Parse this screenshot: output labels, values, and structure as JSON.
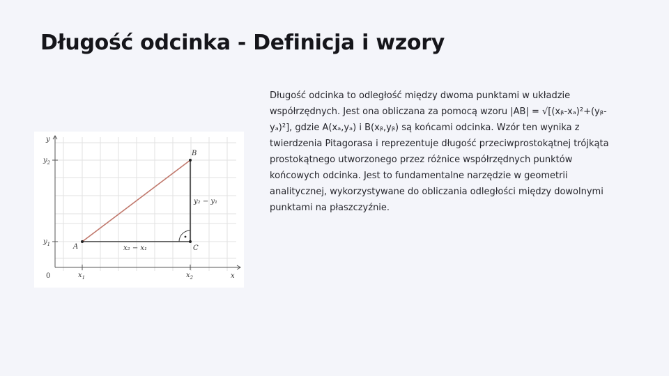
{
  "slide": {
    "title": "Długość odcinka - Definicja i wzory",
    "body": "Długość odcinka to odległość między dwoma punktami w układzie współrzędnych. Jest ona obliczana za pomocą wzoru |AB| = √[(xᵦ-xₐ)²+(yᵦ-yₐ)²], gdzie A(xₐ,yₐ) i B(xᵦ,yᵦ) są końcami odcinka. Wzór ten wynika z twierdzenia Pitagorasa i reprezentuje długość przeciwprostokątnej trójkąta prostokątnego utworzonego przez różnice współrzędnych punktów końcowych odcinka. Jest to fundamentalne narzędzie w geometrii analitycznej, wykorzystywane do obliczania odległości między dowolnymi punktami na płaszczyźnie."
  },
  "figure": {
    "axis_y": "y",
    "axis_x": "x",
    "origin": "0",
    "y2": "y",
    "y2_sub": "2",
    "y1": "y",
    "y1_sub": "1",
    "x1": "x",
    "x1_sub": "1",
    "x2": "x",
    "x2_sub": "2",
    "point_a": "A",
    "point_b": "B",
    "point_c": "C",
    "horizontal_leg": "x₂ − x₁",
    "vertical_leg": "y₂ − y₁",
    "hypotenuse_color": "#c0786c",
    "leg_color": "#3a3a3a",
    "grid_color": "#e2e2e2"
  }
}
